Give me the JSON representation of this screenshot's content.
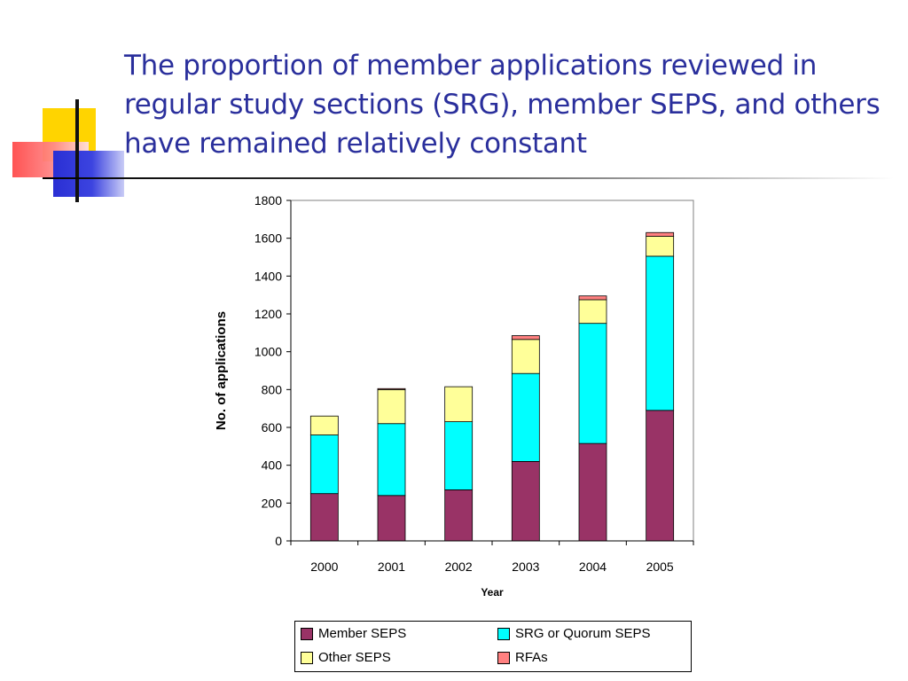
{
  "slide": {
    "title": "The proportion of member applications reviewed in regular study sections (SRG), member SEPS, and others have remained relatively constant"
  },
  "chart_data": {
    "type": "bar",
    "stacked": true,
    "categories": [
      "2000",
      "2001",
      "2002",
      "2003",
      "2004",
      "2005"
    ],
    "series": [
      {
        "name": "Member SEPS",
        "color": "#993366",
        "values": [
          250,
          240,
          270,
          420,
          515,
          690
        ]
      },
      {
        "name": "SRG or Quorum SEPS",
        "color": "#00ffff",
        "values": [
          310,
          380,
          360,
          465,
          635,
          815
        ]
      },
      {
        "name": "Other SEPS",
        "color": "#ffff99",
        "values": [
          100,
          180,
          185,
          180,
          125,
          105
        ]
      },
      {
        "name": "RFAs",
        "color": "#ff8080",
        "values": [
          0,
          5,
          0,
          20,
          20,
          20
        ]
      }
    ],
    "xlabel": "Year",
    "ylabel": "No. of applications",
    "ylim": [
      0,
      1800
    ],
    "yticks": [
      0,
      200,
      400,
      600,
      800,
      1000,
      1200,
      1400,
      1600,
      1800
    ],
    "grid": false,
    "legend_position": "bottom"
  }
}
